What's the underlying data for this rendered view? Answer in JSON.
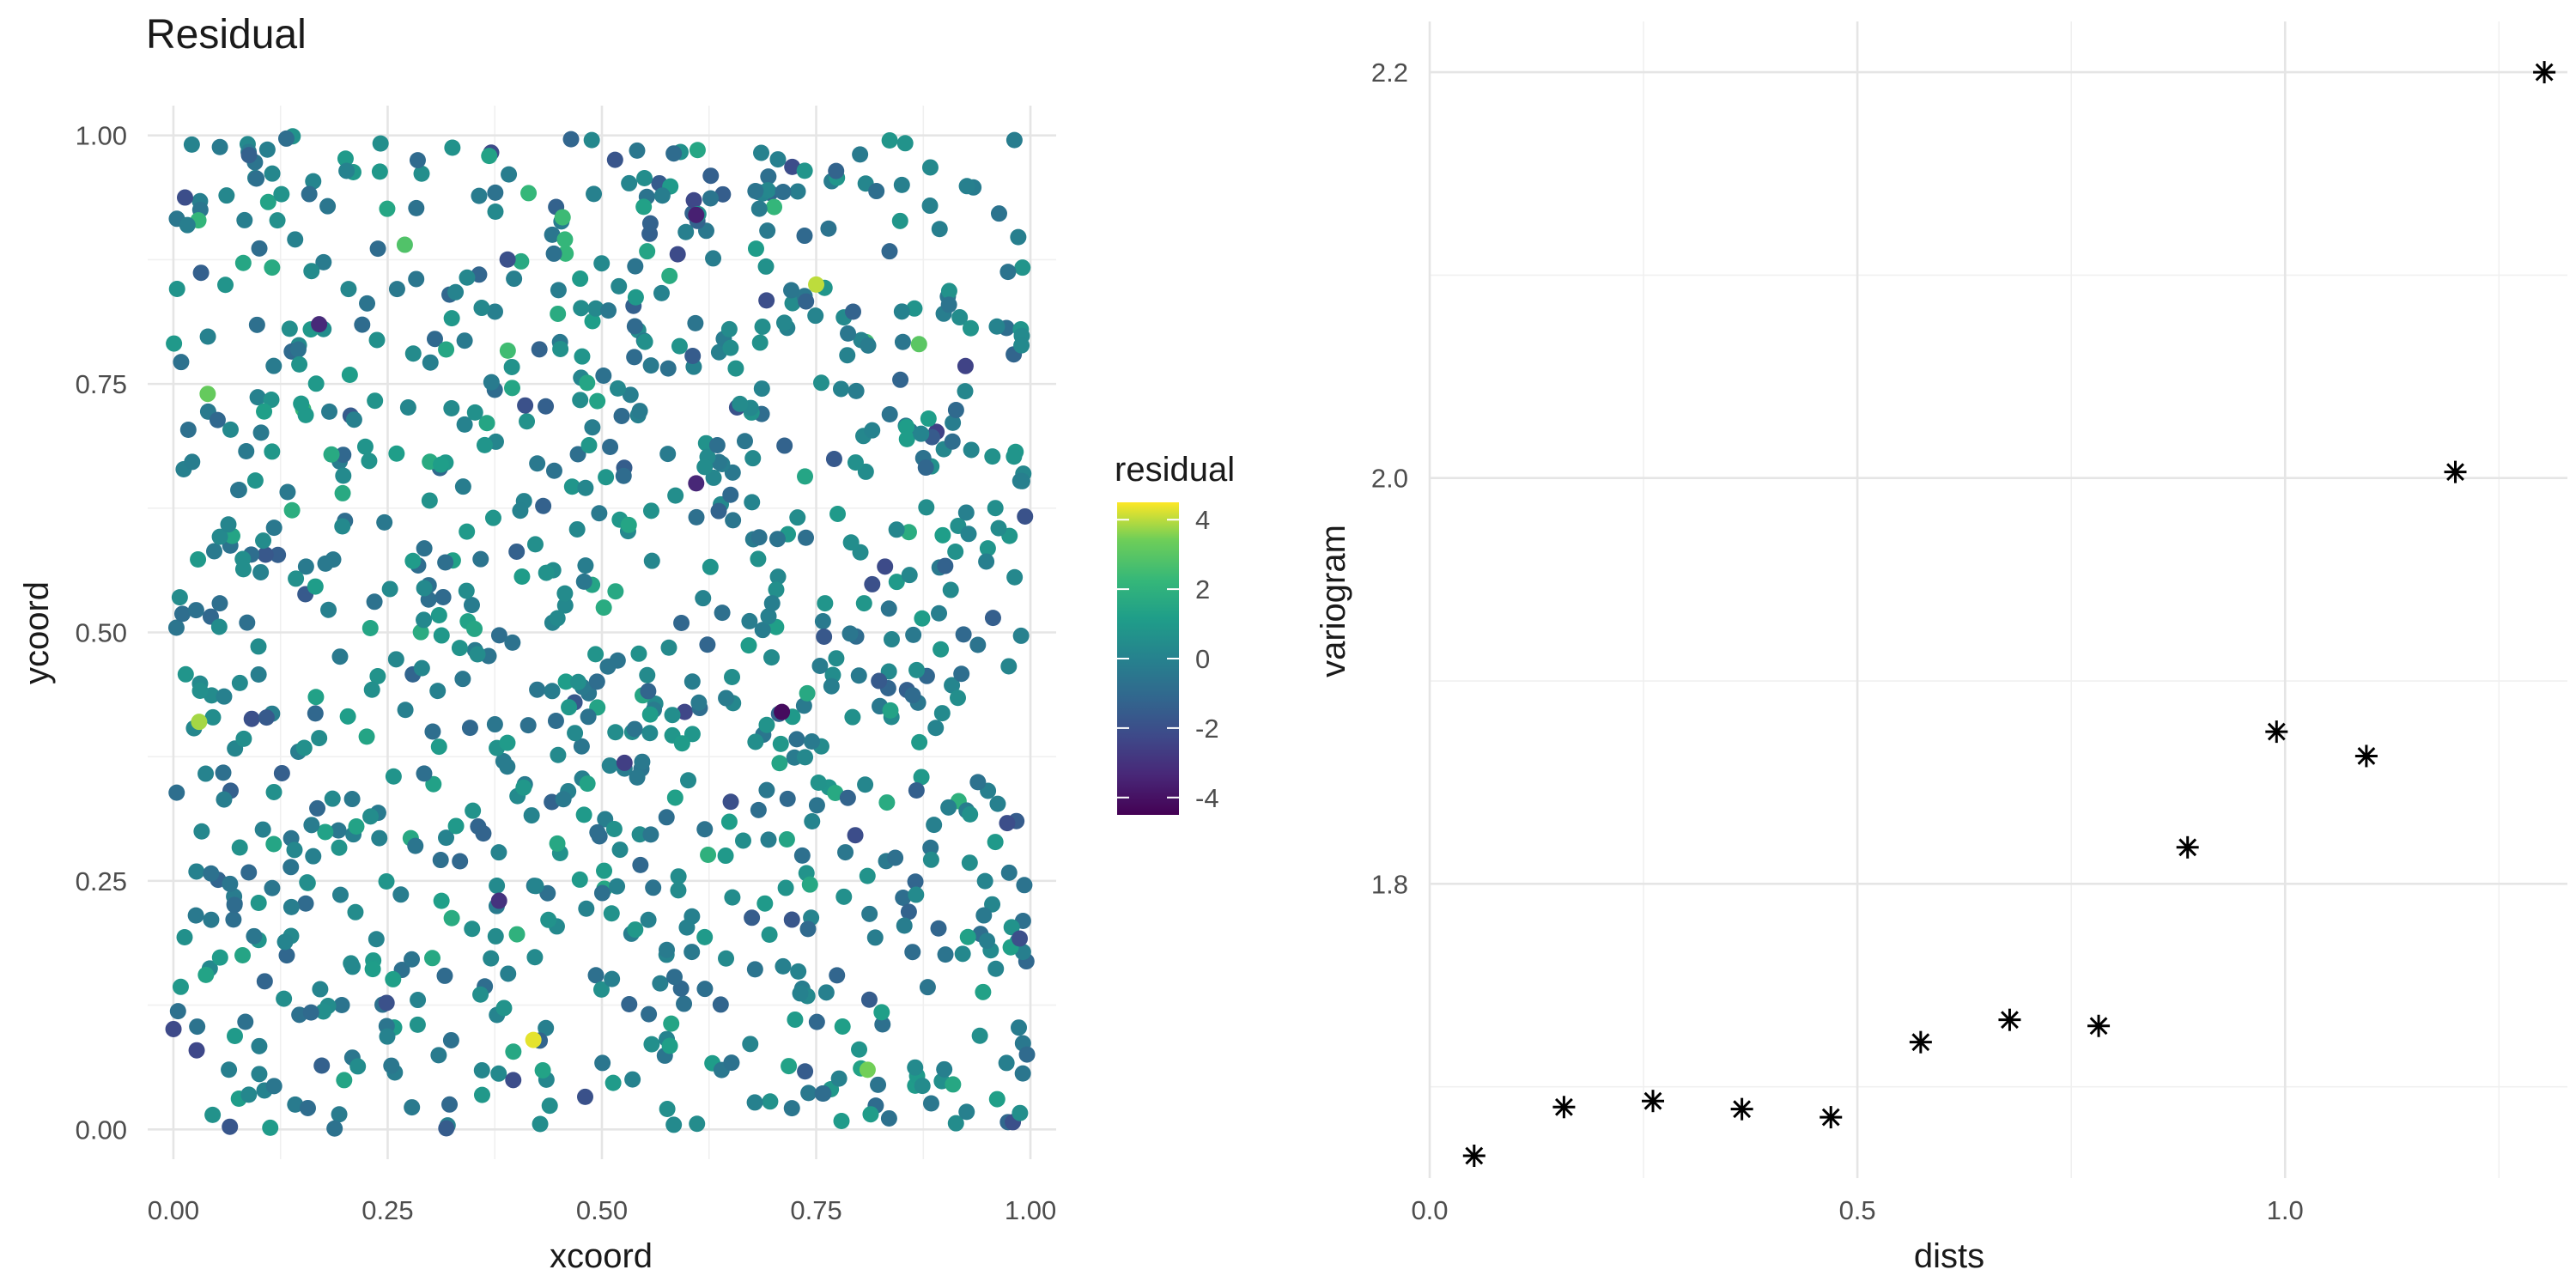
{
  "chart_data": [
    {
      "type": "scatter",
      "title": "Residual",
      "xlabel": "xcoord",
      "ylabel": "ycoord",
      "xlim": [
        -0.03,
        1.03
      ],
      "ylim": [
        -0.03,
        1.03
      ],
      "x_ticks": [
        "0.00",
        "0.25",
        "0.50",
        "0.75",
        "1.00"
      ],
      "y_ticks": [
        "0.00",
        "0.25",
        "0.50",
        "0.75",
        "1.00"
      ],
      "grid": true,
      "legend": {
        "title": "residual",
        "placement": "right",
        "range": [
          -4.5,
          4.5
        ],
        "ticks": [
          "4",
          "2",
          "0",
          "-2",
          "-4"
        ],
        "colormap": "viridis"
      },
      "approx_point_count": 1000,
      "points_sample": [
        {
          "x": 0.71,
          "y": 0.42,
          "residual": -4.2
        },
        {
          "x": 0.61,
          "y": 0.92,
          "residual": -3.6
        },
        {
          "x": 0.17,
          "y": 0.81,
          "residual": -3.3
        },
        {
          "x": 0.75,
          "y": 0.85,
          "residual": 4.0
        },
        {
          "x": 0.42,
          "y": 0.09,
          "residual": 4.3
        },
        {
          "x": 0.03,
          "y": 0.41,
          "residual": 3.8
        },
        {
          "x": 0.04,
          "y": 0.74,
          "residual": 3.2
        },
        {
          "x": 0.87,
          "y": 0.79,
          "residual": 3.0
        },
        {
          "x": 0.81,
          "y": 0.06,
          "residual": 3.4
        },
        {
          "x": 0.27,
          "y": 0.89,
          "residual": 2.8
        },
        {
          "x": 0.61,
          "y": 0.65,
          "residual": -3.4
        },
        {
          "x": 0.38,
          "y": 0.23,
          "residual": -3.0
        }
      ]
    },
    {
      "type": "scatter",
      "title": "",
      "xlabel": "dists",
      "ylabel": "variogram",
      "xlim": [
        0.0,
        1.33
      ],
      "ylim": [
        1.655,
        2.225
      ],
      "x_ticks": [
        "0.0",
        "0.5",
        "1.0"
      ],
      "y_ticks": [
        "1.8",
        "2.0",
        "2.2"
      ],
      "grid": true,
      "marker": "asterisk",
      "x": [
        0.052,
        0.157,
        0.261,
        0.365,
        0.469,
        0.574,
        0.678,
        0.782,
        0.886,
        0.99,
        1.095,
        1.199,
        1.303
      ],
      "values": [
        1.666,
        1.69,
        1.693,
        1.689,
        1.685,
        1.722,
        1.733,
        1.73,
        1.818,
        1.875,
        1.863,
        2.003,
        2.2
      ]
    }
  ]
}
